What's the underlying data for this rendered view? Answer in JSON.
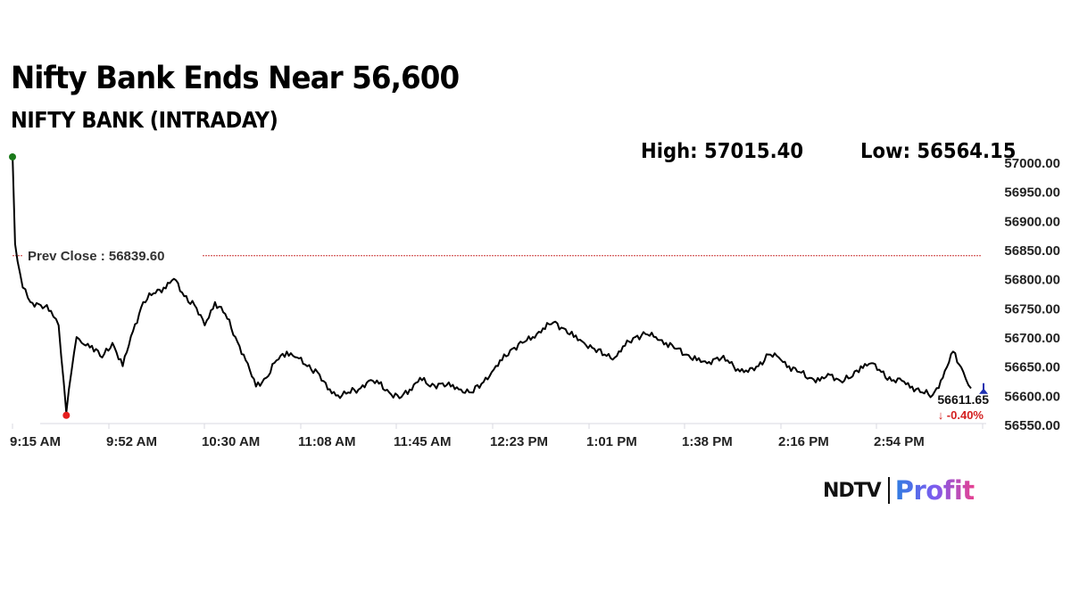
{
  "header": {
    "title": "Nifty Bank Ends Near 56,600",
    "subtitle": "NIFTY BANK (INTRADAY)",
    "high_label": "High: 57015.40",
    "low_label": "Low: 56564.15"
  },
  "annotations": {
    "prev_close_label": "Prev Close : 56839.60",
    "last_price": "56611.65",
    "change_pct": "↓ -0.40%"
  },
  "colors": {
    "line": "#000000",
    "prev_close": "#cc3333",
    "high_marker": "#1a7a1a",
    "low_marker": "#e61e1e",
    "last_marker": "#1c2fb0",
    "change_negative": "#d42020",
    "axis_text": "#222222",
    "axis_line": "#d8d8e0"
  },
  "brand": {
    "ndtv": "NDTV",
    "profit": "Profit"
  },
  "chart_data": {
    "type": "line",
    "title": "NIFTY BANK (INTRADAY)",
    "xlabel": "",
    "ylabel": "",
    "ylim": [
      56550,
      57000
    ],
    "y_ticks": [
      "57000.00",
      "56950.00",
      "56900.00",
      "56850.00",
      "56800.00",
      "56750.00",
      "56700.00",
      "56650.00",
      "56600.00",
      "56550.00"
    ],
    "x_ticks": [
      "9:15 AM",
      "9:52 AM",
      "10:30 AM",
      "11:08 AM",
      "11:45 AM",
      "12:23 PM",
      "1:01 PM",
      "1:38 PM",
      "2:16 PM",
      "2:54 PM"
    ],
    "grid": false,
    "legend": "none",
    "high": 57015.4,
    "low": 56564.15,
    "prev_close": 56839.6,
    "close": 56611.65,
    "change_pct": -0.4,
    "series": [
      {
        "name": "NIFTY BANK",
        "x": [
          "9:15",
          "9:16",
          "9:17",
          "9:19",
          "9:22",
          "9:26",
          "9:30",
          "9:33",
          "9:36",
          "9:38",
          "9:40",
          "9:42",
          "9:46",
          "9:50",
          "9:54",
          "9:58",
          "10:02",
          "10:06",
          "10:10",
          "10:14",
          "10:18",
          "10:22",
          "10:26",
          "10:30",
          "10:34",
          "10:38",
          "10:42",
          "10:46",
          "10:50",
          "10:54",
          "10:58",
          "11:02",
          "11:06",
          "11:10",
          "11:14",
          "11:18",
          "11:22",
          "11:26",
          "11:30",
          "11:34",
          "11:38",
          "11:42",
          "11:46",
          "11:50",
          "11:54",
          "11:58",
          "12:02",
          "12:06",
          "12:10",
          "12:14",
          "12:18",
          "12:22",
          "12:26",
          "12:30",
          "12:34",
          "12:38",
          "12:42",
          "12:46",
          "12:50",
          "12:54",
          "12:58",
          "13:02",
          "13:06",
          "13:10",
          "13:14",
          "13:18",
          "13:22",
          "13:26",
          "13:30",
          "13:34",
          "13:38",
          "13:42",
          "13:46",
          "13:50",
          "13:54",
          "13:58",
          "14:02",
          "14:06",
          "14:10",
          "14:14",
          "14:18",
          "14:22",
          "14:26",
          "14:30",
          "14:34",
          "14:38",
          "14:42",
          "14:46",
          "14:50",
          "14:54",
          "14:58",
          "15:02",
          "15:06",
          "15:10",
          "15:14",
          "15:18",
          "15:22",
          "15:26",
          "15:29"
        ],
        "values": [
          57015,
          56860,
          56830,
          56785,
          56760,
          56755,
          56745,
          56720,
          56570,
          56640,
          56700,
          56690,
          56685,
          56665,
          56690,
          56650,
          56710,
          56760,
          56775,
          56785,
          56800,
          56770,
          56755,
          56720,
          56760,
          56740,
          56700,
          56660,
          56615,
          56630,
          56660,
          56675,
          56665,
          56650,
          56640,
          56610,
          56600,
          56605,
          56610,
          56625,
          56620,
          56605,
          56595,
          56610,
          56630,
          56615,
          56620,
          56615,
          56610,
          56605,
          56620,
          56640,
          56660,
          56680,
          56690,
          56700,
          56715,
          56725,
          56715,
          56700,
          56690,
          56680,
          56670,
          56665,
          56685,
          56700,
          56705,
          56700,
          56690,
          56680,
          56670,
          56660,
          56655,
          56665,
          56660,
          56645,
          56640,
          56650,
          56670,
          56665,
          56650,
          56640,
          56630,
          56625,
          56635,
          56625,
          56630,
          56650,
          56655,
          56640,
          56625,
          56625,
          56615,
          56605,
          56600,
          56630,
          56675,
          56640,
          56612
        ]
      }
    ]
  }
}
